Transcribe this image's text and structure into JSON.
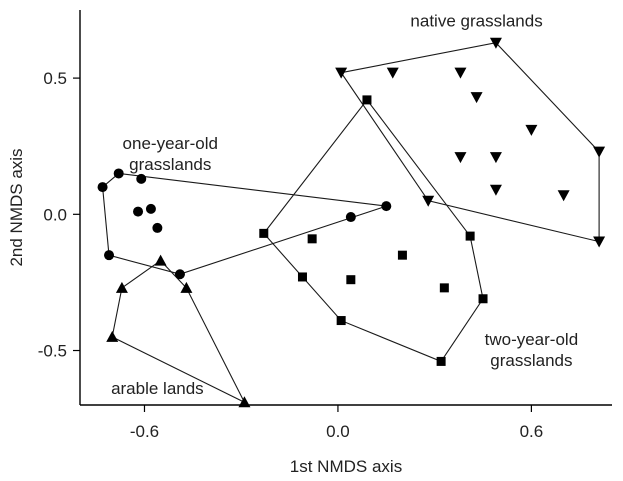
{
  "chart_data": {
    "type": "scatter",
    "xlabel": "1st NMDS axis",
    "ylabel": "2nd NMDS axis",
    "xlim": [
      -0.8,
      0.85
    ],
    "ylim": [
      -0.7,
      0.75
    ],
    "xticks": [
      -0.6,
      0.0,
      0.6
    ],
    "xtick_labels": [
      "-0.6",
      "0.0",
      "0.6"
    ],
    "yticks": [
      -0.5,
      0.0,
      0.5
    ],
    "ytick_labels": [
      "-0.5",
      "0.0",
      "0.5"
    ],
    "grid": false,
    "series": [
      {
        "name": "native grasslands",
        "marker": "triangle-down",
        "points": [
          [
            0.01,
            0.52
          ],
          [
            0.17,
            0.52
          ],
          [
            0.49,
            0.63
          ],
          [
            0.38,
            0.52
          ],
          [
            0.43,
            0.43
          ],
          [
            0.6,
            0.31
          ],
          [
            0.38,
            0.21
          ],
          [
            0.49,
            0.21
          ],
          [
            0.49,
            0.09
          ],
          [
            0.7,
            0.07
          ],
          [
            0.81,
            0.23
          ],
          [
            0.81,
            -0.1
          ],
          [
            0.28,
            0.05
          ]
        ],
        "hull": [
          [
            0.01,
            0.52
          ],
          [
            0.49,
            0.63
          ],
          [
            0.81,
            0.23
          ],
          [
            0.81,
            -0.1
          ],
          [
            0.28,
            0.05
          ]
        ]
      },
      {
        "name": "one-year-old grasslands",
        "marker": "circle",
        "points": [
          [
            -0.73,
            0.1
          ],
          [
            -0.68,
            0.15
          ],
          [
            -0.61,
            0.13
          ],
          [
            -0.62,
            0.01
          ],
          [
            -0.58,
            0.02
          ],
          [
            -0.56,
            -0.05
          ],
          [
            -0.71,
            -0.15
          ],
          [
            -0.49,
            -0.22
          ],
          [
            0.04,
            -0.01
          ],
          [
            0.15,
            0.03
          ]
        ],
        "hull": [
          [
            -0.73,
            0.1
          ],
          [
            -0.68,
            0.15
          ],
          [
            0.15,
            0.03
          ],
          [
            -0.49,
            -0.22
          ],
          [
            -0.71,
            -0.15
          ]
        ]
      },
      {
        "name": "two-year-old grasslands",
        "marker": "square",
        "points": [
          [
            0.09,
            0.42
          ],
          [
            -0.23,
            -0.07
          ],
          [
            -0.08,
            -0.09
          ],
          [
            -0.11,
            -0.23
          ],
          [
            0.04,
            -0.24
          ],
          [
            0.2,
            -0.15
          ],
          [
            0.33,
            -0.27
          ],
          [
            0.41,
            -0.08
          ],
          [
            0.45,
            -0.31
          ],
          [
            0.01,
            -0.39
          ],
          [
            0.32,
            -0.54
          ]
        ],
        "hull": [
          [
            0.09,
            0.42
          ],
          [
            0.41,
            -0.08
          ],
          [
            0.45,
            -0.31
          ],
          [
            0.32,
            -0.54
          ],
          [
            0.01,
            -0.39
          ],
          [
            -0.23,
            -0.07
          ]
        ]
      },
      {
        "name": "arable lands",
        "marker": "triangle-up",
        "points": [
          [
            -0.67,
            -0.27
          ],
          [
            -0.55,
            -0.17
          ],
          [
            -0.47,
            -0.27
          ],
          [
            -0.7,
            -0.45
          ],
          [
            -0.29,
            -0.69
          ]
        ],
        "hull": [
          [
            -0.67,
            -0.27
          ],
          [
            -0.55,
            -0.17
          ],
          [
            -0.47,
            -0.27
          ],
          [
            -0.29,
            -0.69
          ],
          [
            -0.7,
            -0.45
          ]
        ]
      }
    ],
    "annotations": [
      {
        "lines": [
          "native grasslands"
        ],
        "x": 0.43,
        "y": 0.69
      },
      {
        "lines": [
          "one-year-old",
          "grasslands"
        ],
        "x": -0.52,
        "y": 0.24
      },
      {
        "lines": [
          "two-year-old",
          "grasslands"
        ],
        "x": 0.6,
        "y": -0.48
      },
      {
        "lines": [
          "arable lands"
        ],
        "x": -0.56,
        "y": -0.66
      }
    ]
  }
}
